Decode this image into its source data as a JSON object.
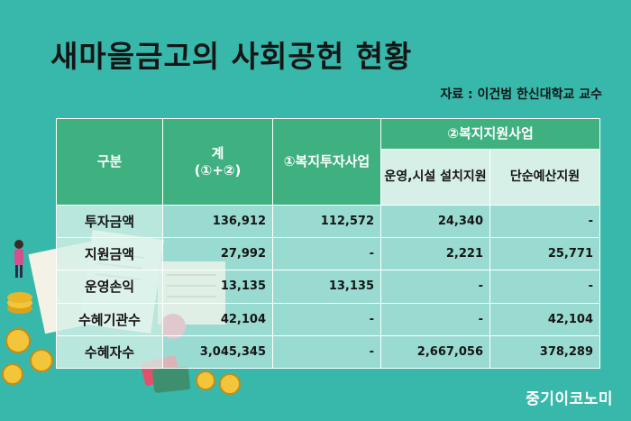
{
  "title": "새마을금고의 사회공헌 현황",
  "source": "자료 : 이건범 한신대학교 교수",
  "table": {
    "header": {
      "category": "구분",
      "total_line1": "계",
      "total_line2": "(①+②)",
      "col1": "①복지투자사업",
      "group2": "②복지지원사업",
      "col2": "운영,시설 설치지원",
      "col3": "단순예산지원"
    },
    "rows": [
      {
        "label": "투자금액",
        "total": "136,912",
        "c1": "112,572",
        "c2": "24,340",
        "c3": "-"
      },
      {
        "label": "지원금액",
        "total": "27,992",
        "c1": "-",
        "c2": "2,221",
        "c3": "25,771"
      },
      {
        "label": "운영손익",
        "total": "13,135",
        "c1": "13,135",
        "c2": "-",
        "c3": "-"
      },
      {
        "label": "수혜기관수",
        "total": "42,104",
        "c1": "-",
        "c2": "-",
        "c3": "42,104"
      },
      {
        "label": "수혜자수",
        "total": "3,045,345",
        "c1": "-",
        "c2": "2,667,056",
        "c3": "378,289"
      }
    ]
  },
  "logo": "중기이코노미",
  "colors": {
    "background": "#37b8ab",
    "header": "#3fb07f",
    "subheader": "#d6f0e8",
    "text": "#151515"
  },
  "illustration": [
    "woman-figure-icon",
    "coin-stack-icon",
    "document-icon",
    "credit-card-icon"
  ]
}
